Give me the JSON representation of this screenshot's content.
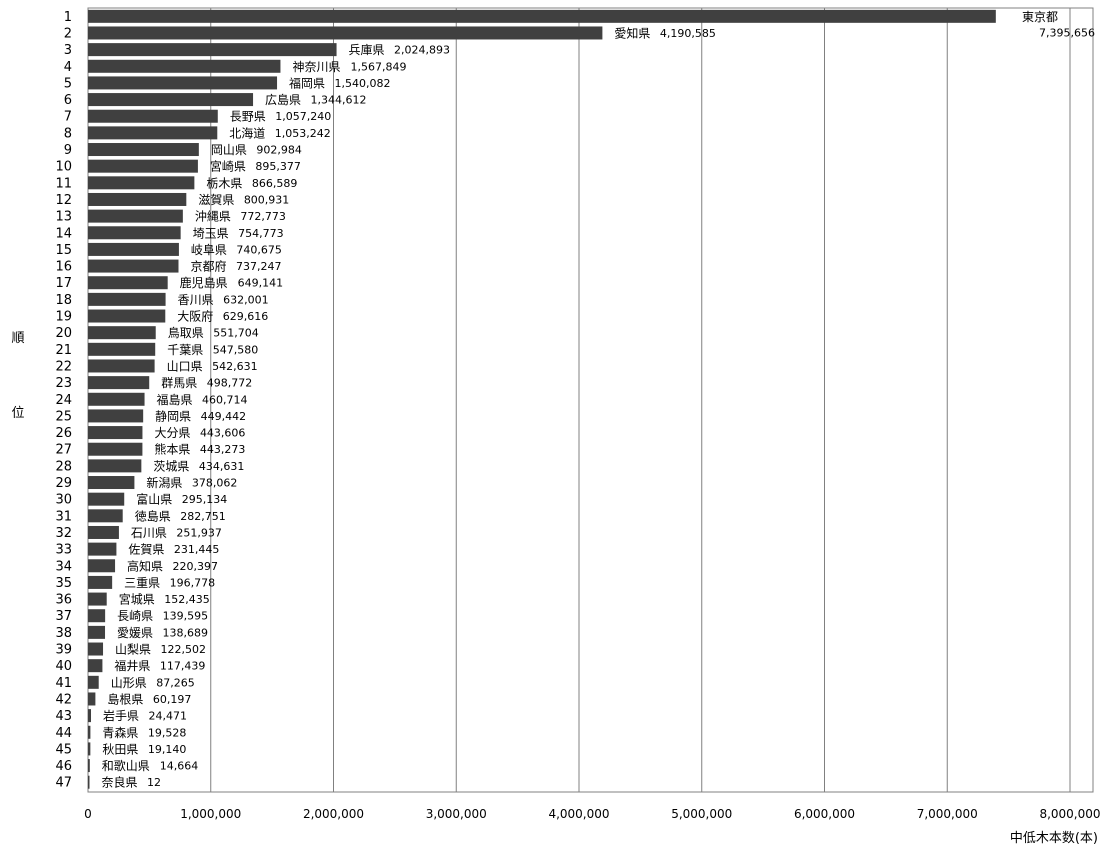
{
  "chart_data": {
    "type": "bar",
    "orientation": "horizontal",
    "ylabel": "順位",
    "xlabel": "中低木本数(本)",
    "xlim": [
      0,
      8000000
    ],
    "xticks": [
      0,
      1000000,
      2000000,
      3000000,
      4000000,
      5000000,
      6000000,
      7000000,
      8000000
    ],
    "xtick_labels": [
      "0",
      "1,000,000",
      "2,000,000",
      "3,000,000",
      "4,000,000",
      "5,000,000",
      "6,000,000",
      "7,000,000",
      "8,000,000"
    ],
    "grid": "vertical",
    "bar_color": "#404040",
    "rows": [
      {
        "rank": "1",
        "pref": "東京都",
        "value": 7395656,
        "label": "7,395,656"
      },
      {
        "rank": "2",
        "pref": "愛知県",
        "value": 4190585,
        "label": "4,190,585"
      },
      {
        "rank": "3",
        "pref": "兵庫県",
        "value": 2024893,
        "label": "2,024,893"
      },
      {
        "rank": "4",
        "pref": "神奈川県",
        "value": 1567849,
        "label": "1,567,849"
      },
      {
        "rank": "5",
        "pref": "福岡県",
        "value": 1540082,
        "label": "1,540,082"
      },
      {
        "rank": "6",
        "pref": "広島県",
        "value": 1344612,
        "label": "1,344,612"
      },
      {
        "rank": "7",
        "pref": "長野県",
        "value": 1057240,
        "label": "1,057,240"
      },
      {
        "rank": "8",
        "pref": "北海道",
        "value": 1053242,
        "label": "1,053,242"
      },
      {
        "rank": "9",
        "pref": "岡山県",
        "value": 902984,
        "label": "902,984"
      },
      {
        "rank": "10",
        "pref": "宮崎県",
        "value": 895377,
        "label": "895,377"
      },
      {
        "rank": "11",
        "pref": "栃木県",
        "value": 866589,
        "label": "866,589"
      },
      {
        "rank": "12",
        "pref": "滋賀県",
        "value": 800931,
        "label": "800,931"
      },
      {
        "rank": "13",
        "pref": "沖縄県",
        "value": 772773,
        "label": "772,773"
      },
      {
        "rank": "14",
        "pref": "埼玉県",
        "value": 754773,
        "label": "754,773"
      },
      {
        "rank": "15",
        "pref": "岐阜県",
        "value": 740675,
        "label": "740,675"
      },
      {
        "rank": "16",
        "pref": "京都府",
        "value": 737247,
        "label": "737,247"
      },
      {
        "rank": "17",
        "pref": "鹿児島県",
        "value": 649141,
        "label": "649,141"
      },
      {
        "rank": "18",
        "pref": "香川県",
        "value": 632001,
        "label": "632,001"
      },
      {
        "rank": "19",
        "pref": "大阪府",
        "value": 629616,
        "label": "629,616"
      },
      {
        "rank": "20",
        "pref": "鳥取県",
        "value": 551704,
        "label": "551,704"
      },
      {
        "rank": "21",
        "pref": "千葉県",
        "value": 547580,
        "label": "547,580"
      },
      {
        "rank": "22",
        "pref": "山口県",
        "value": 542631,
        "label": "542,631"
      },
      {
        "rank": "23",
        "pref": "群馬県",
        "value": 498772,
        "label": "498,772"
      },
      {
        "rank": "24",
        "pref": "福島県",
        "value": 460714,
        "label": "460,714"
      },
      {
        "rank": "25",
        "pref": "静岡県",
        "value": 449442,
        "label": "449,442"
      },
      {
        "rank": "26",
        "pref": "大分県",
        "value": 443606,
        "label": "443,606"
      },
      {
        "rank": "27",
        "pref": "熊本県",
        "value": 443273,
        "label": "443,273"
      },
      {
        "rank": "28",
        "pref": "茨城県",
        "value": 434631,
        "label": "434,631"
      },
      {
        "rank": "29",
        "pref": "新潟県",
        "value": 378062,
        "label": "378,062"
      },
      {
        "rank": "30",
        "pref": "富山県",
        "value": 295134,
        "label": "295,134"
      },
      {
        "rank": "31",
        "pref": "徳島県",
        "value": 282751,
        "label": "282,751"
      },
      {
        "rank": "32",
        "pref": "石川県",
        "value": 251937,
        "label": "251,937"
      },
      {
        "rank": "33",
        "pref": "佐賀県",
        "value": 231445,
        "label": "231,445"
      },
      {
        "rank": "34",
        "pref": "高知県",
        "value": 220397,
        "label": "220,397"
      },
      {
        "rank": "35",
        "pref": "三重県",
        "value": 196778,
        "label": "196,778"
      },
      {
        "rank": "36",
        "pref": "宮城県",
        "value": 152435,
        "label": "152,435"
      },
      {
        "rank": "37",
        "pref": "長崎県",
        "value": 139595,
        "label": "139,595"
      },
      {
        "rank": "38",
        "pref": "愛媛県",
        "value": 138689,
        "label": "138,689"
      },
      {
        "rank": "39",
        "pref": "山梨県",
        "value": 122502,
        "label": "122,502"
      },
      {
        "rank": "40",
        "pref": "福井県",
        "value": 117439,
        "label": "117,439"
      },
      {
        "rank": "41",
        "pref": "山形県",
        "value": 87265,
        "label": "87,265"
      },
      {
        "rank": "42",
        "pref": "島根県",
        "value": 60197,
        "label": "60,197"
      },
      {
        "rank": "43",
        "pref": "岩手県",
        "value": 24471,
        "label": "24,471"
      },
      {
        "rank": "44",
        "pref": "青森県",
        "value": 19528,
        "label": "19,528"
      },
      {
        "rank": "45",
        "pref": "秋田県",
        "value": 19140,
        "label": "19,140"
      },
      {
        "rank": "46",
        "pref": "和歌山県",
        "value": 14664,
        "label": "14,664"
      },
      {
        "rank": "47",
        "pref": "奈良県",
        "value": 12,
        "label": "12"
      }
    ]
  }
}
